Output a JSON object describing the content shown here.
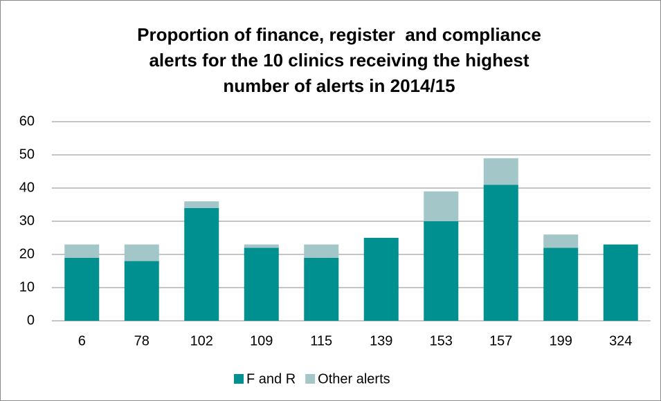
{
  "chart_data": {
    "type": "stacked_bar",
    "title": [
      "Proportion of finance, register  and compliance",
      "alerts for the 10 clinics receiving the highest",
      "number of alerts in 2014/15"
    ],
    "categories": [
      "6",
      "78",
      "102",
      "109",
      "115",
      "139",
      "153",
      "157",
      "199",
      "324"
    ],
    "series": [
      {
        "name": "F and R",
        "color": "#009090",
        "values": [
          19,
          18,
          34,
          22,
          19,
          25,
          30,
          41,
          22,
          23
        ]
      },
      {
        "name": "Other alerts",
        "color": "#a3c6c8",
        "values": [
          4,
          5,
          2,
          1,
          4,
          0,
          9,
          8,
          4,
          0
        ]
      }
    ],
    "ylim": [
      0,
      60
    ],
    "yticks": [
      0,
      10,
      20,
      30,
      40,
      50,
      60
    ],
    "grid": true,
    "legend": "bottom"
  }
}
